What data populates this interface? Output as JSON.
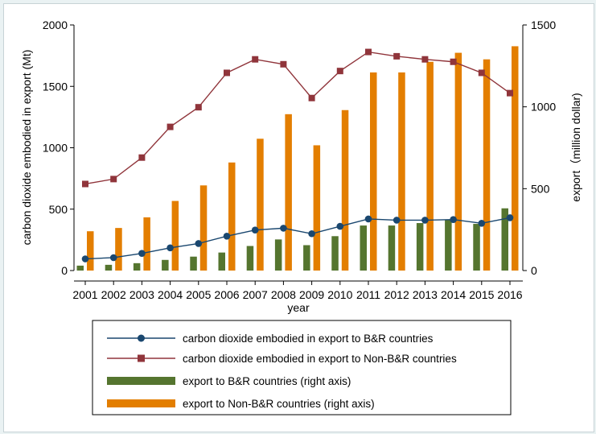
{
  "chart_data": {
    "type": "bar+line",
    "categories": [
      "2001",
      "2002",
      "2003",
      "2004",
      "2005",
      "2006",
      "2007",
      "2008",
      "2009",
      "2010",
      "2011",
      "2012",
      "2013",
      "2014",
      "2015",
      "2016"
    ],
    "xlabel": "year",
    "ylabel_left": "carbon dioxide embodied in export (Mt)",
    "ylabel_right": "export（million dollar)",
    "ylim_left": [
      0,
      2000
    ],
    "ylim_right": [
      0,
      1500
    ],
    "yticks_left": [
      "0",
      "500",
      "1000",
      "1500",
      "2000"
    ],
    "yticks_right": [
      "0",
      "500",
      "1000",
      "1500"
    ],
    "series": [
      {
        "name": "carbon dioxide embodied in export to B&R countries",
        "type": "line",
        "axis": "left",
        "marker": "circle",
        "color": "#1a476f",
        "values": [
          95,
          105,
          140,
          185,
          220,
          280,
          330,
          345,
          300,
          360,
          420,
          410,
          410,
          415,
          385,
          430
        ]
      },
      {
        "name": "carbon dioxide embodied in export to Non-B&R countries",
        "type": "line",
        "axis": "left",
        "marker": "square",
        "color": "#90353b",
        "values": [
          705,
          745,
          920,
          1170,
          1330,
          1610,
          1720,
          1680,
          1405,
          1625,
          1780,
          1745,
          1720,
          1700,
          1610,
          1445
        ]
      },
      {
        "name": "export to B&R countries (right axis)",
        "type": "bar",
        "axis": "right",
        "color": "#55752f",
        "values": [
          30,
          35,
          45,
          65,
          85,
          110,
          150,
          190,
          155,
          210,
          275,
          275,
          290,
          310,
          285,
          380
        ]
      },
      {
        "name": "export to Non-B&R countries (right axis)",
        "type": "bar",
        "axis": "right",
        "color": "#e37e00",
        "values": [
          240,
          260,
          325,
          425,
          520,
          660,
          805,
          955,
          765,
          980,
          1210,
          1210,
          1275,
          1330,
          1290,
          1370
        ]
      }
    ]
  }
}
